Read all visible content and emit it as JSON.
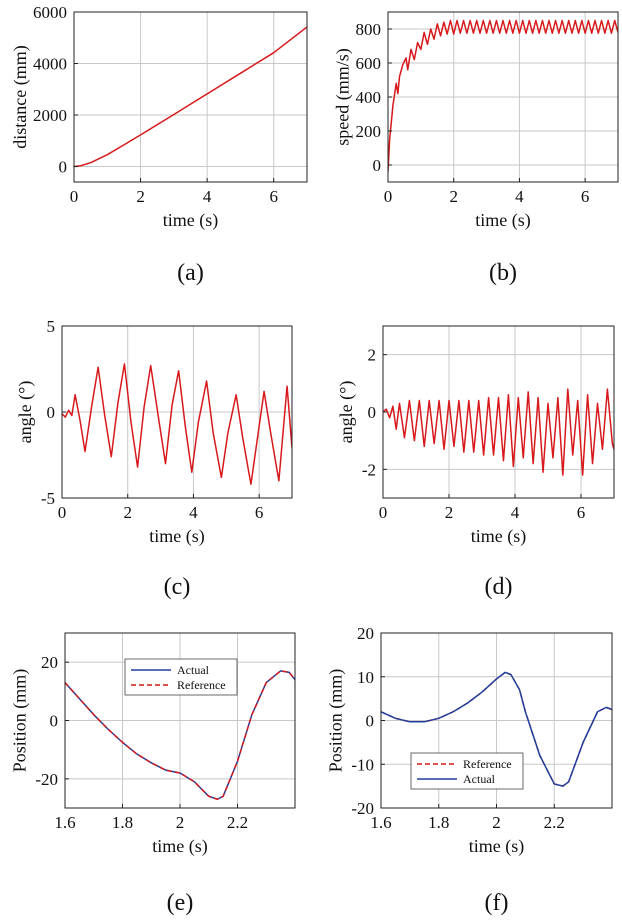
{
  "colors": {
    "red": "#d7191c",
    "blue": "#1f3f9e",
    "grid": "#c8c8c8",
    "axis": "#222222"
  },
  "chart_data": [
    {
      "panel": "(a)",
      "type": "line",
      "xlabel": "time (s)",
      "ylabel": "distance (mm)",
      "xlim": [
        0,
        7
      ],
      "ylim": [
        -600,
        6000
      ],
      "xticks": [
        0,
        2,
        4,
        6
      ],
      "yticks": [
        0,
        2000,
        4000,
        6000
      ],
      "grid": true,
      "series": [
        {
          "color": "#d7191c",
          "style": "solid",
          "x": [
            0,
            0.2,
            0.5,
            1,
            1.5,
            2,
            3,
            4,
            5,
            6,
            7
          ],
          "y": [
            0,
            30,
            150,
            460,
            840,
            1230,
            2020,
            2820,
            3620,
            4420,
            5420
          ]
        }
      ]
    },
    {
      "panel": "(b)",
      "type": "line",
      "xlabel": "time (s)",
      "ylabel": "speed (mm/s)",
      "xlim": [
        0,
        7
      ],
      "ylim": [
        -100,
        900
      ],
      "xticks": [
        0,
        2,
        4,
        6
      ],
      "yticks": [
        0,
        200,
        400,
        600,
        800
      ],
      "grid": true,
      "series": [
        {
          "color": "#d7191c",
          "style": "solid",
          "x": [
            0,
            0.05,
            0.15,
            0.25,
            0.3,
            0.35,
            0.45,
            0.55,
            0.6,
            0.7,
            0.8,
            0.9,
            1.0,
            1.1,
            1.2,
            1.3,
            1.4,
            1.5,
            1.6,
            1.7,
            1.8,
            1.9,
            2.0,
            2.1,
            2.2,
            2.3,
            2.4,
            2.5,
            2.6,
            2.7,
            2.8,
            2.9,
            3.0,
            3.1,
            3.2,
            3.3,
            3.4,
            3.5,
            3.6,
            3.7,
            3.8,
            3.9,
            4.0,
            4.1,
            4.2,
            4.3,
            4.4,
            4.5,
            4.6,
            4.7,
            4.8,
            4.9,
            5.0,
            5.1,
            5.2,
            5.3,
            5.4,
            5.5,
            5.6,
            5.7,
            5.8,
            5.9,
            6.0,
            6.1,
            6.2,
            6.3,
            6.4,
            6.5,
            6.6,
            6.7,
            6.8,
            6.9,
            7.0
          ],
          "y": [
            -40,
            150,
            350,
            480,
            420,
            520,
            590,
            630,
            560,
            680,
            620,
            720,
            680,
            780,
            710,
            800,
            740,
            830,
            760,
            840,
            770,
            850,
            770,
            850,
            775,
            850,
            775,
            850,
            775,
            850,
            775,
            850,
            775,
            850,
            775,
            850,
            775,
            850,
            775,
            850,
            775,
            850,
            775,
            850,
            775,
            850,
            775,
            850,
            775,
            850,
            775,
            850,
            775,
            850,
            775,
            850,
            775,
            850,
            775,
            850,
            775,
            850,
            775,
            850,
            775,
            850,
            775,
            850,
            775,
            850,
            775,
            850,
            780
          ]
        }
      ]
    },
    {
      "panel": "(c)",
      "type": "line",
      "xlabel": "time (s)",
      "ylabel": "angle (°)",
      "xlim": [
        0,
        7
      ],
      "ylim": [
        -5,
        5
      ],
      "xticks": [
        0,
        2,
        4,
        6
      ],
      "yticks": [
        -5,
        0,
        5
      ],
      "grid": true,
      "series": [
        {
          "color": "#d7191c",
          "style": "solid",
          "x": [
            0,
            0.1,
            0.2,
            0.3,
            0.4,
            0.55,
            0.7,
            0.9,
            1.1,
            1.3,
            1.5,
            1.7,
            1.9,
            2.1,
            2.3,
            2.5,
            2.7,
            2.95,
            3.15,
            3.35,
            3.55,
            3.75,
            3.95,
            4.15,
            4.4,
            4.6,
            4.85,
            5.05,
            5.3,
            5.5,
            5.75,
            5.95,
            6.15,
            6.35,
            6.6,
            6.85,
            7.0
          ],
          "y": [
            -0.1,
            -0.3,
            0.1,
            -0.2,
            1.0,
            -0.5,
            -2.3,
            0.3,
            2.6,
            -0.2,
            -2.6,
            0.5,
            2.8,
            -0.6,
            -3.2,
            0.3,
            2.7,
            -0.5,
            -3.0,
            0.4,
            2.4,
            -0.8,
            -3.5,
            -0.6,
            1.8,
            -1.2,
            -3.8,
            -1.2,
            1.0,
            -1.5,
            -4.2,
            -1.5,
            1.2,
            -1.2,
            -4.0,
            1.5,
            -2.1
          ]
        }
      ]
    },
    {
      "panel": "(d)",
      "type": "line",
      "xlabel": "time (s)",
      "ylabel": "angle (°)",
      "xlim": [
        0,
        7
      ],
      "ylim": [
        -3,
        3
      ],
      "xticks": [
        0,
        2,
        4,
        6
      ],
      "yticks": [
        -2,
        0,
        2
      ],
      "grid": true,
      "series": [
        {
          "color": "#d7191c",
          "style": "solid",
          "x": [
            0,
            0.1,
            0.2,
            0.3,
            0.4,
            0.5,
            0.65,
            0.8,
            0.95,
            1.1,
            1.25,
            1.4,
            1.55,
            1.7,
            1.85,
            2.0,
            2.15,
            2.3,
            2.45,
            2.6,
            2.75,
            2.9,
            3.05,
            3.2,
            3.35,
            3.5,
            3.65,
            3.8,
            3.95,
            4.1,
            4.25,
            4.4,
            4.55,
            4.7,
            4.85,
            5.0,
            5.15,
            5.3,
            5.45,
            5.6,
            5.75,
            5.9,
            6.05,
            6.2,
            6.35,
            6.5,
            6.65,
            6.8,
            6.95,
            7.0
          ],
          "y": [
            0.0,
            0.1,
            -0.2,
            0.2,
            -0.6,
            0.3,
            -0.9,
            0.4,
            -1.0,
            0.4,
            -1.2,
            0.4,
            -1.1,
            0.4,
            -1.3,
            0.4,
            -1.2,
            0.4,
            -1.4,
            0.4,
            -1.4,
            0.4,
            -1.5,
            0.5,
            -1.5,
            0.5,
            -1.7,
            0.6,
            -1.9,
            0.5,
            -1.6,
            0.7,
            -1.8,
            0.5,
            -2.1,
            0.3,
            -1.6,
            0.5,
            -2.2,
            0.8,
            -1.5,
            0.4,
            -2.2,
            0.6,
            -1.8,
            0.3,
            -1.3,
            0.8,
            -1.1,
            -1.3
          ]
        }
      ]
    },
    {
      "panel": "(e)",
      "type": "line",
      "xlabel": "time (s)",
      "ylabel": "Position (mm)",
      "xlim": [
        1.6,
        2.4
      ],
      "ylim": [
        -30,
        30
      ],
      "xticks": [
        1.6,
        1.8,
        2,
        2.2
      ],
      "xticklabels": [
        "1.6",
        "1.8",
        "2",
        "2.2"
      ],
      "yticks": [
        -20,
        0,
        20
      ],
      "grid": true,
      "legend": "top-center",
      "series": [
        {
          "name": "Actual",
          "color": "#1f3f9e",
          "style": "solid",
          "x": [
            1.6,
            1.65,
            1.7,
            1.75,
            1.8,
            1.85,
            1.9,
            1.95,
            2.0,
            2.05,
            2.1,
            2.13,
            2.15,
            2.2,
            2.25,
            2.3,
            2.35,
            2.38,
            2.4
          ],
          "y": [
            13,
            7.5,
            2,
            -3,
            -7.5,
            -11.5,
            -14.5,
            -17,
            -18,
            -21,
            -26,
            -27,
            -26,
            -14,
            2,
            13,
            17,
            16.5,
            14
          ]
        },
        {
          "name": "Reference",
          "color": "#d7191c",
          "style": "dashed",
          "x": [
            1.6,
            1.65,
            1.7,
            1.75,
            1.8,
            1.85,
            1.9,
            1.95,
            2.0,
            2.05,
            2.1,
            2.13,
            2.15,
            2.2,
            2.25,
            2.3,
            2.35,
            2.38,
            2.4
          ],
          "y": [
            13,
            7.5,
            2,
            -3,
            -7.5,
            -11.5,
            -14.5,
            -17,
            -18,
            -21,
            -26,
            -27,
            -26,
            -14,
            2,
            13,
            17,
            16.5,
            14
          ]
        }
      ]
    },
    {
      "panel": "(f)",
      "type": "line",
      "xlabel": "time (s)",
      "ylabel": "Position (mm)",
      "xlim": [
        1.6,
        2.4
      ],
      "ylim": [
        -20,
        20
      ],
      "xticks": [
        1.6,
        1.8,
        2,
        2.2
      ],
      "xticklabels": [
        "1.6",
        "1.8",
        "2",
        "2.2"
      ],
      "yticks": [
        -20,
        -10,
        0,
        10,
        20
      ],
      "grid": true,
      "legend": "bottom-left",
      "series": [
        {
          "name": "Reference",
          "color": "#d7191c",
          "style": "dashed",
          "x": [
            1.6,
            1.65,
            1.7,
            1.75,
            1.8,
            1.85,
            1.9,
            1.95,
            2.0,
            2.03,
            2.05,
            2.08,
            2.1,
            2.15,
            2.2,
            2.23,
            2.25,
            2.3,
            2.35,
            2.38,
            2.4
          ],
          "y": [
            2,
            0.5,
            -0.3,
            -0.3,
            0.5,
            2,
            4,
            6.5,
            9.5,
            11,
            10.5,
            7,
            2,
            -8,
            -14.5,
            -15,
            -14,
            -5,
            2,
            3,
            2.5
          ]
        },
        {
          "name": "Actual",
          "color": "#1f3f9e",
          "style": "solid",
          "x": [
            1.6,
            1.65,
            1.7,
            1.75,
            1.8,
            1.85,
            1.9,
            1.95,
            2.0,
            2.03,
            2.05,
            2.08,
            2.1,
            2.15,
            2.2,
            2.23,
            2.25,
            2.3,
            2.35,
            2.38,
            2.4
          ],
          "y": [
            2,
            0.5,
            -0.3,
            -0.3,
            0.5,
            2,
            4,
            6.5,
            9.5,
            11,
            10.5,
            7,
            2,
            -8,
            -14.5,
            -15,
            -14,
            -5,
            2,
            3,
            2.5
          ]
        }
      ]
    }
  ]
}
